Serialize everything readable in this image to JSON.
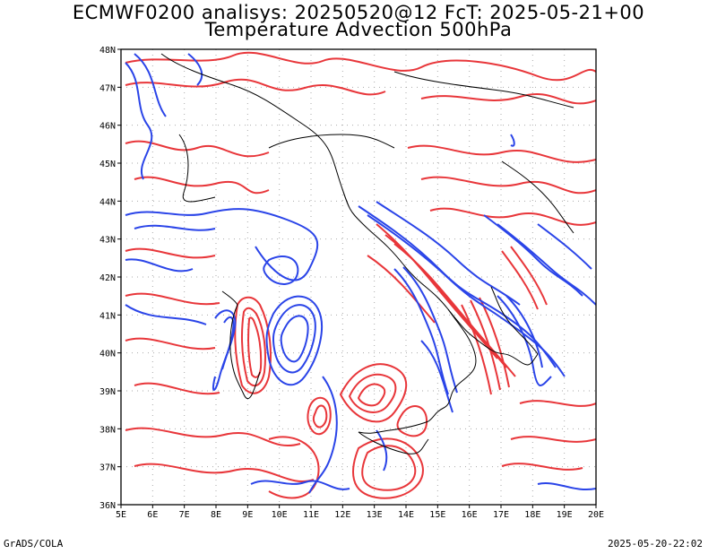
{
  "title_line1": "ECMWF0200 analisys: 20250520@12 FcT: 2025-05-21+00",
  "title_line2": "Temperature Advection 500hPa",
  "footer_left": "GrADS/COLA",
  "footer_right": "2025-05-20-22:02",
  "map": {
    "lon_labels": [
      "5E",
      "6E",
      "7E",
      "8E",
      "9E",
      "10E",
      "11E",
      "12E",
      "13E",
      "14E",
      "15E",
      "16E",
      "17E",
      "18E",
      "19E",
      "20E"
    ],
    "lat_labels": [
      "36N",
      "37N",
      "38N",
      "39N",
      "40N",
      "41N",
      "42N",
      "43N",
      "44N",
      "45N",
      "46N",
      "47N",
      "48N"
    ],
    "lon_range": [
      5,
      20
    ],
    "lat_range": [
      36,
      48
    ],
    "positive_color": "#e8363a",
    "negative_color": "#2a44e8",
    "coast_color": "#000000"
  }
}
